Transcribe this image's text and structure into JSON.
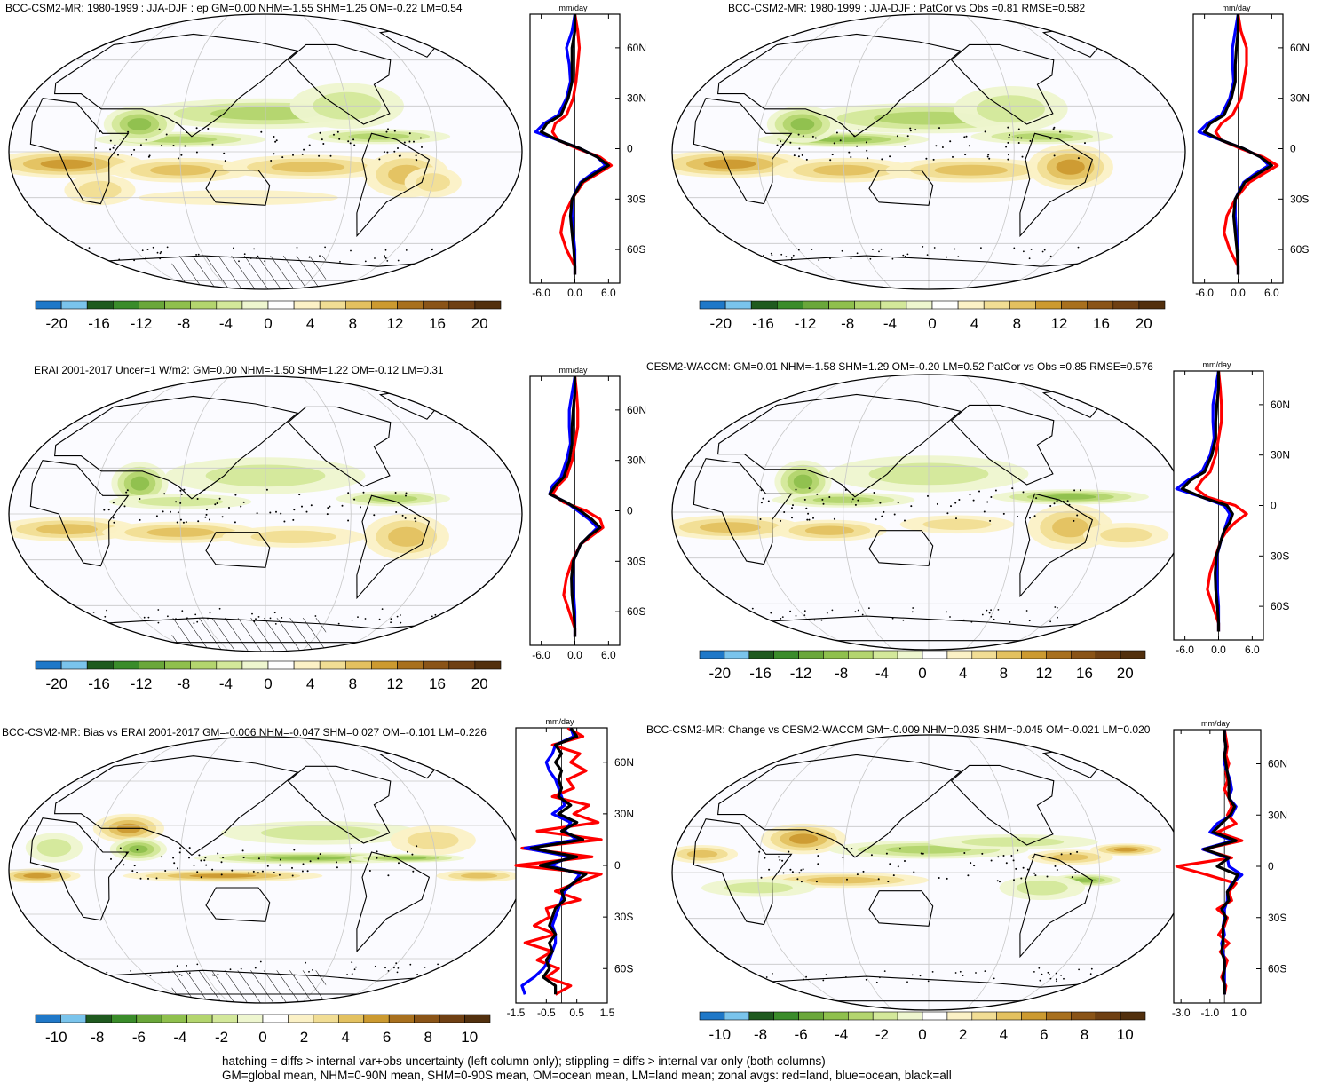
{
  "figure": {
    "footer_lines": [
      "hatching = diffs > internal var+obs uncertainty (left column only); stippling = diffs > internal var only (both columns)",
      "GM=global mean, NHM=0-90N mean, SHM=0-90S mean, OM=ocean mean, LM=land mean; zonal avgs: red=land, blue=ocean, black=all"
    ]
  },
  "palette": [
    "#1f78c8",
    "#7ac4ec",
    "#1f5a1f",
    "#3a8c2a",
    "#6aa73a",
    "#8fc04d",
    "#b3d56e",
    "#d3e89a",
    "#eef6cf",
    "#ffffff",
    "#fbf1c6",
    "#f1dd94",
    "#e3c160",
    "#cc9a30",
    "#a8701e",
    "#8a5417",
    "#6f4013",
    "#52300e"
  ],
  "chart_data": [
    {
      "type": "heatmap",
      "title": "BCC-CSM2-MR: 1980-1999 : JJA-DJF : ep GM=0.00 NHM=-1.55 SHM=1.25 OM=-0.22 LM=0.54",
      "colorbar_ticks": [
        "-20",
        "-16",
        "-12",
        "-8",
        "-4",
        "0",
        "4",
        "8",
        "12",
        "16",
        "20"
      ],
      "colorbar_range": [
        -22,
        22
      ],
      "hatching": true,
      "zonal_mean": {
        "unit": "mm/day",
        "xlim": [
          -8,
          8
        ],
        "xticks": [
          "-6.0",
          "0.0",
          "6.0"
        ],
        "yticks": [
          "60N",
          "30N",
          "0",
          "30S",
          "60S"
        ],
        "lat": [
          80,
          70,
          60,
          50,
          40,
          30,
          20,
          15,
          10,
          5,
          0,
          -5,
          -10,
          -15,
          -20,
          -30,
          -40,
          -50,
          -60,
          -70,
          -75
        ],
        "series": [
          {
            "name": "land",
            "color": "#ff0000",
            "values": [
              0,
              0.5,
              0.8,
              0.5,
              0.2,
              -0.3,
              -1.5,
              -3.5,
              -4,
              -3,
              0.5,
              4.5,
              6.5,
              4,
              1.5,
              -0.5,
              -2,
              -2.5,
              -1.5,
              0,
              0
            ]
          },
          {
            "name": "ocean",
            "color": "#0000ff",
            "values": [
              0,
              -0.5,
              -1.5,
              -1,
              -0.8,
              -1.5,
              -3,
              -5.5,
              -7,
              -3,
              1,
              4,
              5.5,
              3,
              1,
              -0.5,
              -0.5,
              -0.3,
              0,
              0,
              0
            ]
          },
          {
            "name": "all",
            "color": "#000000",
            "values": [
              0,
              0,
              -0.5,
              -0.5,
              -0.5,
              -1.2,
              -2.5,
              -5,
              -6,
              -3,
              1,
              4,
              6,
              3.5,
              1.2,
              -0.5,
              -0.8,
              -0.5,
              -0.2,
              0,
              0
            ]
          }
        ]
      }
    },
    {
      "type": "heatmap",
      "title": "BCC-CSM2-MR: 1980-1999 : JJA-DJF : PatCor vs Obs =0.81 RMSE=0.582",
      "colorbar_ticks": [
        "-20",
        "-16",
        "-12",
        "-8",
        "-4",
        "0",
        "4",
        "8",
        "12",
        "16",
        "20"
      ],
      "colorbar_range": [
        -22,
        22
      ],
      "hatching": false,
      "zonal_mean": {
        "unit": "mm/day",
        "xlim": [
          -8,
          8
        ],
        "xticks": [
          "-6.0",
          "0.0",
          "6.0"
        ],
        "yticks": [
          "60N",
          "30N",
          "0",
          "30S",
          "60S"
        ],
        "lat": [
          80,
          70,
          60,
          50,
          40,
          30,
          20,
          15,
          10,
          5,
          0,
          -5,
          -10,
          -15,
          -20,
          -30,
          -40,
          -50,
          -60,
          -70,
          -75
        ],
        "series": [
          {
            "name": "land",
            "color": "#ff0000",
            "values": [
              0,
              0.5,
              1.5,
              1.5,
              1,
              0.5,
              -1,
              -3,
              -4,
              -3,
              0.5,
              4.5,
              7,
              4.5,
              2,
              -0.5,
              -2,
              -2.5,
              -1.5,
              0,
              0
            ]
          },
          {
            "name": "ocean",
            "color": "#0000ff",
            "values": [
              0,
              -0.5,
              -1,
              -1,
              -0.8,
              -1.5,
              -3,
              -5.5,
              -7,
              -3,
              1,
              4,
              5.5,
              3,
              1,
              -0.5,
              -0.5,
              -0.3,
              0,
              0,
              0
            ]
          },
          {
            "name": "all",
            "color": "#000000",
            "values": [
              0,
              0,
              -0.3,
              -0.5,
              -0.5,
              -1.2,
              -2.5,
              -5,
              -6,
              -3,
              1,
              4,
              6,
              3.5,
              1.2,
              -0.5,
              -0.8,
              -0.5,
              -0.2,
              0,
              0
            ]
          }
        ]
      }
    },
    {
      "type": "heatmap",
      "title": "ERAI 2001-2017 Uncer=1 W/m2: GM=0.00 NHM=-1.50 SHM=1.22 OM=-0.12 LM=0.31",
      "colorbar_ticks": [
        "-20",
        "-16",
        "-12",
        "-8",
        "-4",
        "0",
        "4",
        "8",
        "12",
        "16",
        "20"
      ],
      "colorbar_range": [
        -22,
        22
      ],
      "hatching": true,
      "zonal_mean": {
        "unit": "mm/day",
        "xlim": [
          -8,
          8
        ],
        "xticks": [
          "-6.0",
          "0.0",
          "6.0"
        ],
        "yticks": [
          "60N",
          "30N",
          "0",
          "30S",
          "60S"
        ],
        "lat": [
          80,
          70,
          60,
          50,
          40,
          30,
          20,
          15,
          10,
          5,
          0,
          -5,
          -10,
          -15,
          -20,
          -30,
          -40,
          -50,
          -60,
          -70,
          -75
        ],
        "series": [
          {
            "name": "land",
            "color": "#ff0000",
            "values": [
              0,
              0.3,
              0.5,
              0.5,
              0,
              -0.5,
              -1.5,
              -3,
              -4,
              -2,
              2,
              4.5,
              5,
              3,
              1,
              -0.5,
              -1.5,
              -2,
              -1,
              0,
              0
            ]
          },
          {
            "name": "ocean",
            "color": "#0000ff",
            "values": [
              0,
              -0.5,
              -1,
              -1,
              -0.8,
              -1.5,
              -2.5,
              -4,
              -4.5,
              -1.5,
              0.5,
              2.5,
              4,
              2.5,
              1,
              -0.3,
              -0.3,
              -0.2,
              0,
              0,
              0
            ]
          },
          {
            "name": "all",
            "color": "#000000",
            "values": [
              0,
              0,
              -0.3,
              -0.5,
              -0.5,
              -1,
              -2,
              -3.5,
              -4.5,
              -1.5,
              1,
              3,
              4.5,
              2.5,
              1,
              -0.3,
              -0.6,
              -0.5,
              -0.2,
              0,
              0
            ]
          }
        ]
      }
    },
    {
      "type": "heatmap",
      "title": "CESM2-WACCM: GM=0.01 NHM=-1.58 SHM=1.29 OM=-0.20 LM=0.52 PatCor vs Obs =0.85 RMSE=0.576",
      "colorbar_ticks": [
        "-20",
        "-16",
        "-12",
        "-8",
        "-4",
        "0",
        "4",
        "8",
        "12",
        "16",
        "20"
      ],
      "colorbar_range": [
        -22,
        22
      ],
      "hatching": false,
      "zonal_mean": {
        "unit": "mm/day",
        "xlim": [
          -8,
          8
        ],
        "xticks": [
          "-6.0",
          "0.0",
          "6.0"
        ],
        "yticks": [
          "60N",
          "30N",
          "0",
          "30S",
          "60S"
        ],
        "lat": [
          80,
          70,
          60,
          50,
          40,
          30,
          20,
          15,
          10,
          5,
          0,
          -5,
          -10,
          -15,
          -20,
          -30,
          -40,
          -50,
          -60,
          -70,
          -75
        ],
        "series": [
          {
            "name": "land",
            "color": "#ff0000",
            "values": [
              0,
              0.3,
              0.5,
              0.5,
              0,
              -0.5,
              -1.5,
              -3,
              -4,
              -2,
              3,
              5,
              3,
              1.5,
              0.5,
              -0.5,
              -1.5,
              -2,
              -1,
              0,
              0
            ]
          },
          {
            "name": "ocean",
            "color": "#0000ff",
            "values": [
              0,
              -0.5,
              -1,
              -1,
              -0.8,
              -1.5,
              -3,
              -5.5,
              -7.5,
              -3,
              1,
              2,
              1.5,
              1,
              0.5,
              -0.3,
              -0.3,
              -0.2,
              0,
              0,
              0
            ]
          },
          {
            "name": "all",
            "color": "#000000",
            "values": [
              0,
              0,
              -0.3,
              -0.5,
              -0.5,
              -1.2,
              -2.5,
              -5,
              -6.5,
              -3,
              1.5,
              2.5,
              2,
              1,
              0.5,
              -0.4,
              -0.6,
              -0.5,
              -0.2,
              0,
              0
            ]
          }
        ]
      }
    },
    {
      "type": "heatmap",
      "title": "BCC-CSM2-MR: Bias vs ERAI 2001-2017 GM=-0.006 NHM=-0.047 SHM=0.027 OM=-0.101 LM=0.226",
      "colorbar_ticks": [
        "-10",
        "-8",
        "-6",
        "-4",
        "-2",
        "0",
        "2",
        "4",
        "6",
        "8",
        "10"
      ],
      "colorbar_range": [
        -11,
        11
      ],
      "hatching": true,
      "zonal_mean": {
        "unit": "mm/day",
        "xlim": [
          -1.5,
          1.5
        ],
        "xticks": [
          "-1.5",
          "-0.5",
          "0.5",
          "1.5"
        ],
        "yticks": [
          "60N",
          "30N",
          "0",
          "30S",
          "60S"
        ],
        "lat": [
          80,
          75,
          70,
          65,
          60,
          55,
          50,
          45,
          40,
          35,
          30,
          25,
          20,
          15,
          10,
          5,
          0,
          -5,
          -10,
          -15,
          -20,
          -25,
          -30,
          -35,
          -40,
          -45,
          -50,
          -55,
          -60,
          -65,
          -70,
          -75
        ],
        "series": [
          {
            "name": "land",
            "color": "#ff0000",
            "values": [
              0.2,
              0.7,
              -0.3,
              0.6,
              0.3,
              0.8,
              0.2,
              0.4,
              -0.3,
              0.9,
              0.4,
              1.2,
              -0.8,
              1.3,
              -1.3,
              1.0,
              -1.5,
              1.3,
              0.5,
              -0.2,
              0.6,
              -0.5,
              -0.4,
              -0.9,
              -0.2,
              -1.2,
              -0.3,
              -0.8,
              -0.1,
              -0.5,
              0.3,
              -0.2
            ]
          },
          {
            "name": "ocean",
            "color": "#0000ff",
            "values": [
              0.3,
              0.4,
              -0.2,
              -0.3,
              -0.5,
              -0.4,
              -0.2,
              -0.1,
              0,
              0.1,
              -0.3,
              0.3,
              0.1,
              0.5,
              -1.2,
              0.3,
              -0.4,
              0.6,
              0.4,
              0.1,
              0,
              -0.1,
              -0.2,
              -0.3,
              -0.2,
              -0.2,
              -0.3,
              -0.4,
              -0.6,
              -0.9,
              -1.3,
              -1.2
            ]
          },
          {
            "name": "all",
            "color": "#000000",
            "values": [
              0.3,
              0.5,
              -0.2,
              0,
              -0.2,
              0,
              -0.1,
              0,
              -0.1,
              0.3,
              -0.1,
              0.5,
              0,
              0.7,
              -1.0,
              0.5,
              -0.7,
              0.8,
              0.4,
              0,
              0.1,
              -0.2,
              -0.3,
              -0.4,
              -0.2,
              -0.4,
              -0.3,
              -0.5,
              -0.4,
              -0.6,
              -0.2,
              -0.2
            ]
          }
        ]
      }
    },
    {
      "type": "heatmap",
      "title": "BCC-CSM2-MR: Change vs CESM2-WACCM GM=-0.009 NHM=0.035 SHM=-0.045 OM=-0.021 LM=0.020",
      "colorbar_ticks": [
        "-10",
        "-8",
        "-6",
        "-4",
        "-2",
        "0",
        "2",
        "4",
        "6",
        "8",
        "10"
      ],
      "colorbar_range": [
        -11,
        11
      ],
      "hatching": false,
      "zonal_mean": {
        "unit": "mm/day",
        "xlim": [
          -3.5,
          2.5
        ],
        "xticks": [
          "-3.0",
          "-1.0",
          "1.0"
        ],
        "yticks": [
          "60N",
          "30N",
          "0",
          "30S",
          "60S"
        ],
        "lat": [
          80,
          75,
          70,
          65,
          60,
          55,
          50,
          45,
          40,
          35,
          30,
          25,
          20,
          15,
          10,
          5,
          0,
          -5,
          -10,
          -15,
          -20,
          -25,
          -30,
          -35,
          -40,
          -45,
          -50,
          -55,
          -60,
          -65,
          -70,
          -75
        ],
        "series": [
          {
            "name": "land",
            "color": "#ff0000",
            "values": [
              0,
              0.1,
              0.2,
              0.1,
              0.3,
              0.1,
              0.2,
              0,
              0.3,
              0.5,
              0.2,
              0.8,
              -0.5,
              1.2,
              -1.5,
              0.5,
              -3.3,
              -1.2,
              0.8,
              0.3,
              0.5,
              -0.5,
              0.2,
              0,
              -0.4,
              0.3,
              -0.3,
              0.2,
              0,
              -0.2,
              0.1,
              0
            ]
          },
          {
            "name": "ocean",
            "color": "#0000ff",
            "values": [
              0,
              0,
              0.1,
              0,
              0,
              0.2,
              0.4,
              0.5,
              0.3,
              0.8,
              0.5,
              -0.5,
              -1.0,
              0.6,
              -1.5,
              0.2,
              0.3,
              1.2,
              0.5,
              0.2,
              0.2,
              0,
              0,
              -0.1,
              0,
              -0.2,
              -0.1,
              0,
              0,
              0,
              0,
              0
            ]
          },
          {
            "name": "all",
            "color": "#000000",
            "values": [
              0,
              0,
              0.1,
              0,
              0.1,
              0.2,
              0.3,
              0.3,
              0.3,
              0.7,
              0.4,
              -0.2,
              -0.8,
              0.8,
              -1.4,
              0.3,
              -0.5,
              0.9,
              0.6,
              0.2,
              0.3,
              -0.2,
              0.1,
              -0.1,
              -0.1,
              -0.1,
              -0.2,
              0,
              0,
              -0.1,
              0,
              0
            ]
          }
        ]
      }
    }
  ]
}
